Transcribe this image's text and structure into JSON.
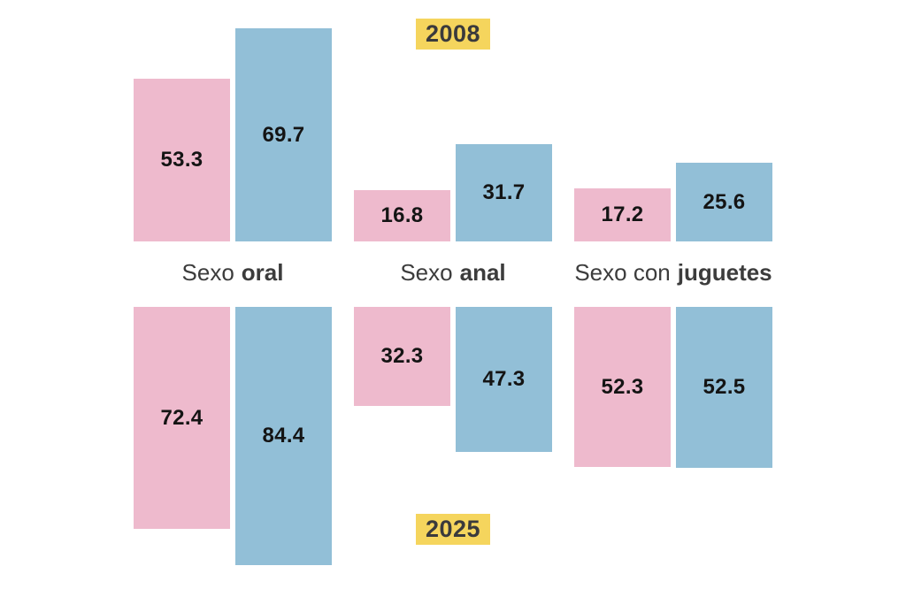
{
  "chart_data": {
    "type": "bar",
    "title": "",
    "description": "Paired bar chart comparing percentages in 2008 (top, bars grow upward from a shared baseline) versus 2025 (bottom, bars grow downward), for three sexual-practice categories, each with a pink series and a blue series. No axes or gridlines; values printed inside bars.",
    "period_labels": {
      "top": "2008",
      "bottom": "2025"
    },
    "categories": [
      "Sexo oral",
      "Sexo anal",
      "Sexo con juguetes"
    ],
    "category_rich": [
      {
        "regular": "Sexo",
        "bold": "oral"
      },
      {
        "regular": "Sexo",
        "bold": "anal"
      },
      {
        "regular": "Sexo con",
        "bold": "juguetes"
      }
    ],
    "series": [
      {
        "name": "2008 serie rosa",
        "year": "2008",
        "color": "#EEBACD",
        "values": [
          53.3,
          16.8,
          17.2
        ]
      },
      {
        "name": "2008 serie azul",
        "year": "2008",
        "color": "#92BFD7",
        "values": [
          69.7,
          31.7,
          25.6
        ]
      },
      {
        "name": "2025 serie rosa",
        "year": "2025",
        "color": "#EEBACD",
        "values": [
          72.4,
          32.3,
          52.3
        ]
      },
      {
        "name": "2025 serie azul",
        "year": "2025",
        "color": "#92BFD7",
        "values": [
          84.4,
          47.3,
          52.5
        ]
      }
    ],
    "value_labels_shown": true,
    "legend": "none",
    "axes": "none",
    "grid": false,
    "colors": {
      "pink": "#EEBACD",
      "blue": "#92BFD7",
      "year_badge_bg": "#F5D55D",
      "year_badge_text": "#3A3A3C",
      "category_text": "#3C3C3C",
      "value_text": "#141414",
      "background": "#FFFFFF"
    }
  }
}
